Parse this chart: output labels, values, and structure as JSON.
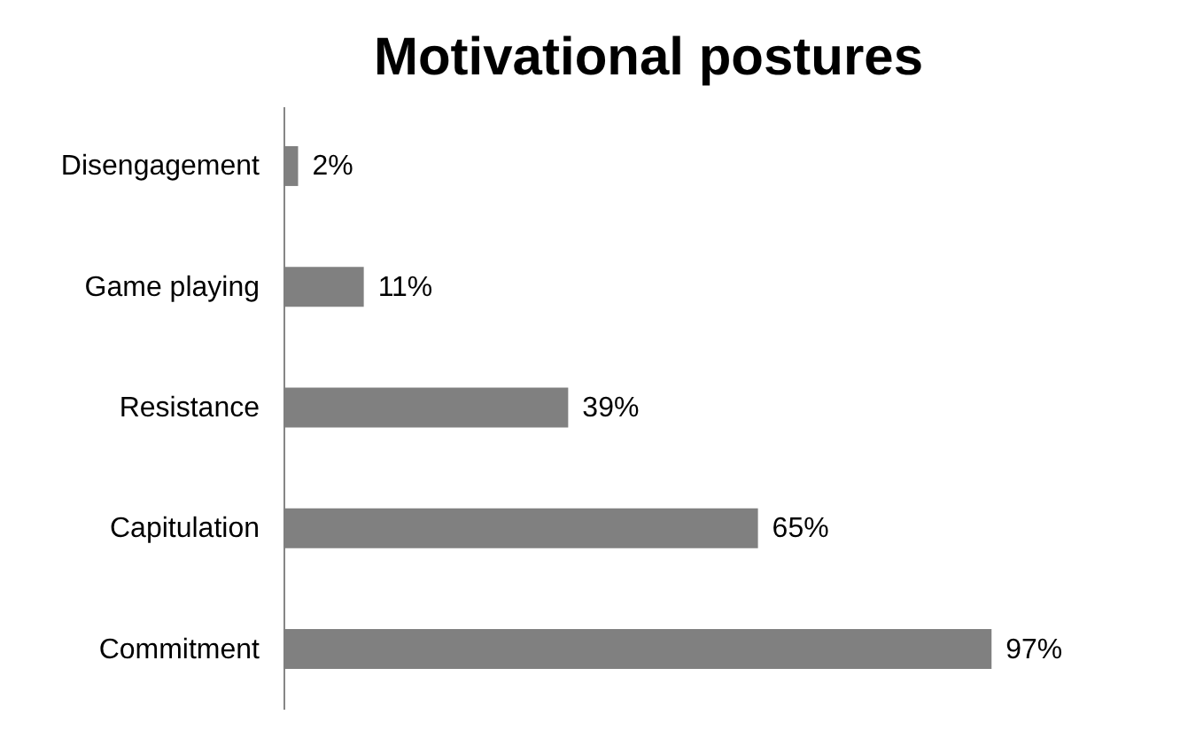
{
  "chart_data": {
    "type": "bar",
    "title": "Motivational postures",
    "orientation": "horizontal",
    "categories": [
      "Disengagement",
      "Game playing",
      "Resistance",
      "Capitulation",
      "Commitment"
    ],
    "values": [
      2,
      11,
      39,
      65,
      97
    ],
    "value_labels": [
      "2%",
      "11%",
      "39%",
      "65%",
      "97%"
    ],
    "color": "#808080"
  }
}
